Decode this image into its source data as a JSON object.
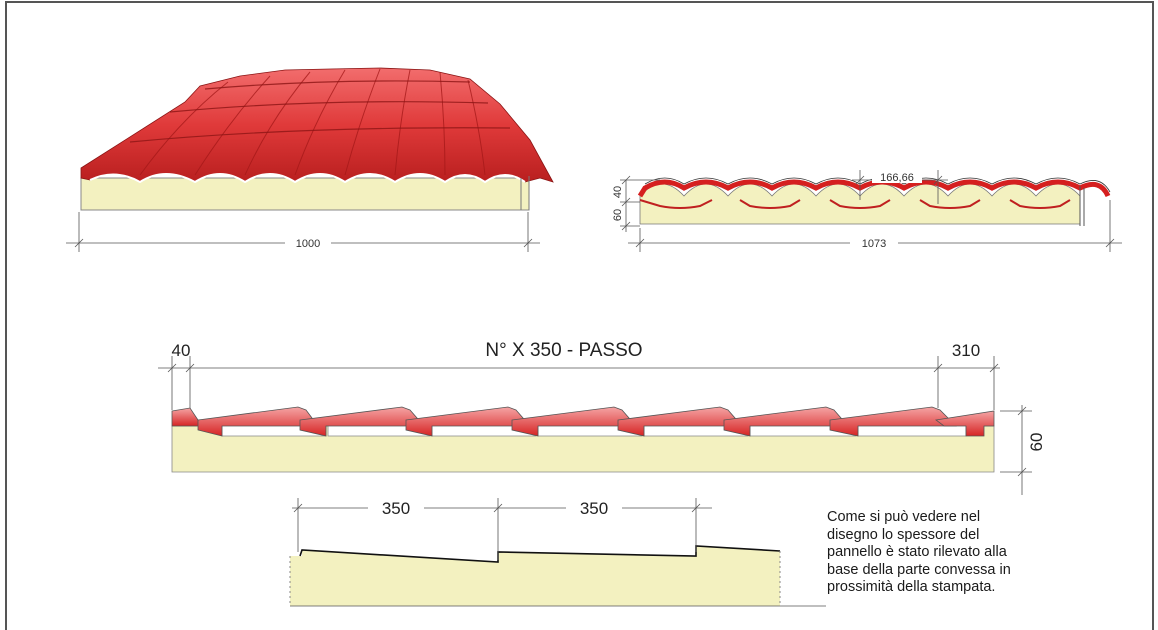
{
  "panel_3d": {
    "width_label": "1000"
  },
  "panel_section": {
    "pitch_label": "166,66",
    "height_top_label": "40",
    "height_bottom_label": "60",
    "width_label": "1073"
  },
  "longitudinal": {
    "left_label": "40",
    "title": "N° X 350 - PASSO",
    "right_label": "310",
    "height_label": "60"
  },
  "detail": {
    "step1_label": "350",
    "step2_label": "350"
  },
  "note": {
    "lines": [
      "Come si può vedere nel",
      "disegno lo spessore del",
      "pannello è stato rilevato alla",
      "base della parte convessa in",
      "prossimità della stampata."
    ]
  }
}
